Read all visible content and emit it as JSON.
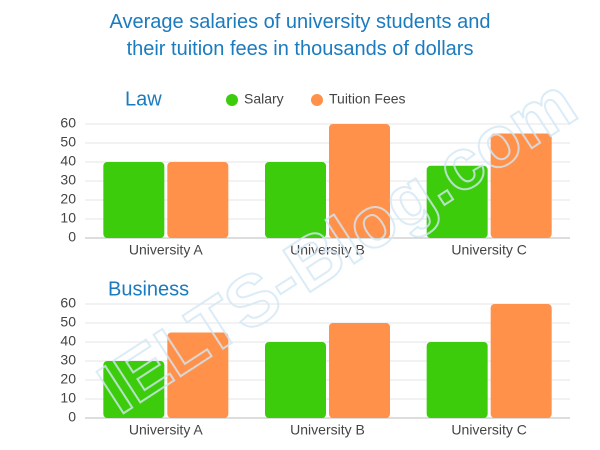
{
  "title": "Average salaries of university students and their tuition fees in thousands of dollars",
  "watermark": "IELTS-Blog.com",
  "chart_data": [
    {
      "type": "bar",
      "title": "Law",
      "categories": [
        "University A",
        "University B",
        "University C"
      ],
      "series": [
        {
          "name": "Salary",
          "color": "#3dcc0c",
          "values": [
            40,
            40,
            38
          ]
        },
        {
          "name": "Tuition Fees",
          "color": "#ff914a",
          "values": [
            40,
            60,
            55
          ]
        }
      ],
      "ylim": [
        0,
        60
      ],
      "yticks": [
        0,
        10,
        20,
        30,
        40,
        50,
        60
      ],
      "grid": true,
      "legend": "top"
    },
    {
      "type": "bar",
      "title": "Business",
      "categories": [
        "University A",
        "University B",
        "University C"
      ],
      "series": [
        {
          "color": "#3dcc0c",
          "values": [
            30,
            40,
            40
          ]
        },
        {
          "color": "#ff914a",
          "values": [
            45,
            50,
            60
          ]
        }
      ],
      "ylim": [
        0,
        60
      ],
      "yticks": [
        0,
        10,
        20,
        30,
        40,
        50,
        60
      ],
      "grid": true
    }
  ]
}
